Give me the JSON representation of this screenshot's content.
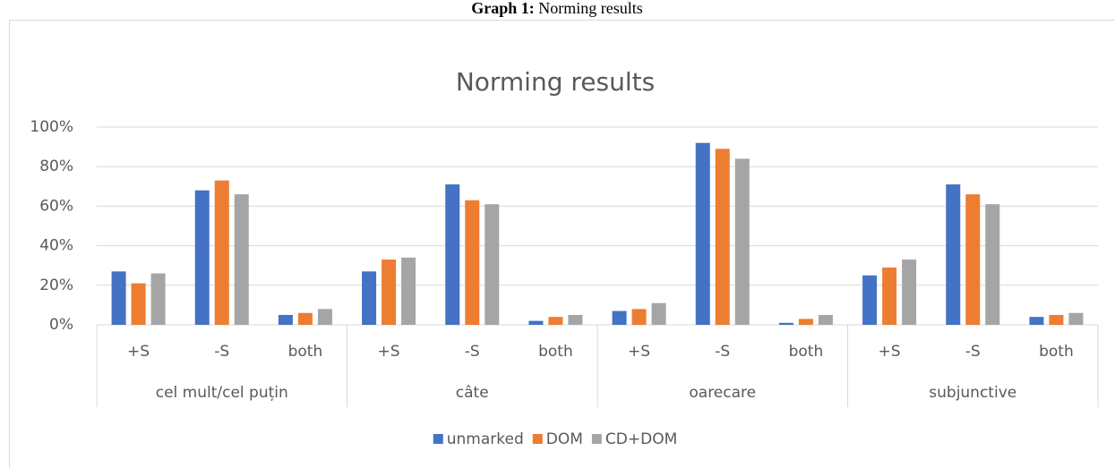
{
  "caption": {
    "label": "Graph 1:",
    "text": "Norming results"
  },
  "chart_data": {
    "type": "bar",
    "title": "Norming results",
    "categories": [
      "+S",
      "-S",
      "both",
      "+S",
      "-S",
      "both",
      "+S",
      "-S",
      "both",
      "+S",
      "-S",
      "both"
    ],
    "groups": [
      "cel mult/cel puțin",
      "câte",
      "oarecare",
      "subjunctive"
    ],
    "series": [
      {
        "name": "unmarked",
        "color": "#4472c4",
        "values": [
          27,
          68,
          5,
          27,
          71,
          2,
          7,
          92,
          1,
          25,
          71,
          4
        ]
      },
      {
        "name": "DOM",
        "color": "#ed7d31",
        "values": [
          21,
          73,
          6,
          33,
          63,
          4,
          8,
          89,
          3,
          29,
          66,
          5
        ]
      },
      {
        "name": "CD+DOM",
        "color": "#a5a5a5",
        "values": [
          26,
          66,
          8,
          34,
          61,
          5,
          11,
          84,
          5,
          33,
          61,
          6
        ]
      }
    ],
    "ylim": [
      0,
      100
    ],
    "yticks": [
      {
        "value": 0,
        "label": "0%"
      },
      {
        "value": 20,
        "label": "20%"
      },
      {
        "value": 40,
        "label": "40%"
      },
      {
        "value": 60,
        "label": "60%"
      },
      {
        "value": 80,
        "label": "80%"
      },
      {
        "value": 100,
        "label": "100%"
      }
    ],
    "grid": true,
    "legend": "bottom"
  }
}
